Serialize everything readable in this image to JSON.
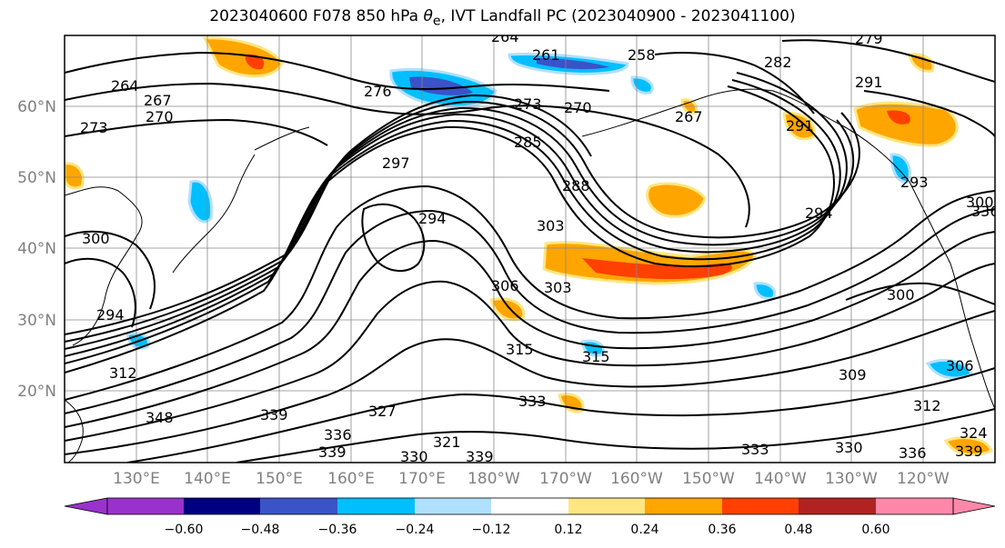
{
  "title": {
    "prefix": "2023040600 F078 850 hPa ",
    "symbol": "θ",
    "subscript": "e",
    "suffix": ", IVT Landfall PC (2023040900 - 2023041100)"
  },
  "map": {
    "latitude_labels": [
      "60°N",
      "50°N",
      "40°N",
      "30°N",
      "20°N"
    ],
    "longitude_labels": [
      "130°E",
      "140°E",
      "150°E",
      "160°E",
      "170°E",
      "180°W",
      "170°W",
      "160°W",
      "150°W",
      "140°W",
      "130°W",
      "120°W"
    ],
    "contour_labels": [
      {
        "text": "264"
      },
      {
        "text": "261"
      },
      {
        "text": "258"
      },
      {
        "text": "279"
      },
      {
        "text": "264"
      },
      {
        "text": "267"
      },
      {
        "text": "270"
      },
      {
        "text": "276"
      },
      {
        "text": "273"
      },
      {
        "text": "270"
      },
      {
        "text": "282"
      },
      {
        "text": "291"
      },
      {
        "text": "273"
      },
      {
        "text": "267"
      },
      {
        "text": "285"
      },
      {
        "text": "291"
      },
      {
        "text": "297"
      },
      {
        "text": "288"
      },
      {
        "text": "293"
      },
      {
        "text": "300"
      },
      {
        "text": "294"
      },
      {
        "text": "303"
      },
      {
        "text": "294"
      },
      {
        "text": "300"
      },
      {
        "text": "303"
      },
      {
        "text": "300"
      },
      {
        "text": "294"
      },
      {
        "text": "306"
      },
      {
        "text": "315"
      },
      {
        "text": "315"
      },
      {
        "text": "309"
      },
      {
        "text": "306"
      },
      {
        "text": "312"
      },
      {
        "text": "333"
      },
      {
        "text": "312"
      },
      {
        "text": "348"
      },
      {
        "text": "339"
      },
      {
        "text": "327"
      },
      {
        "text": "336"
      },
      {
        "text": "321"
      },
      {
        "text": "339"
      },
      {
        "text": "339"
      },
      {
        "text": "333"
      },
      {
        "text": "330"
      },
      {
        "text": "336"
      },
      {
        "text": "339"
      },
      {
        "text": "324"
      },
      {
        "text": "336"
      },
      {
        "text": "330"
      }
    ]
  },
  "colorbar": {
    "tick_labels": [
      "−0.60",
      "−0.48",
      "−0.36",
      "−0.24",
      "−0.12",
      "0.12",
      "0.24",
      "0.36",
      "0.48",
      "0.60"
    ],
    "colors": [
      "#9932cc",
      "#000080",
      "#3a53c8",
      "#00bfff",
      "#b0e0ff",
      "#ffffff",
      "#ffe680",
      "#ffa500",
      "#ff4000",
      "#b22222",
      "#ff88aa"
    ]
  }
}
